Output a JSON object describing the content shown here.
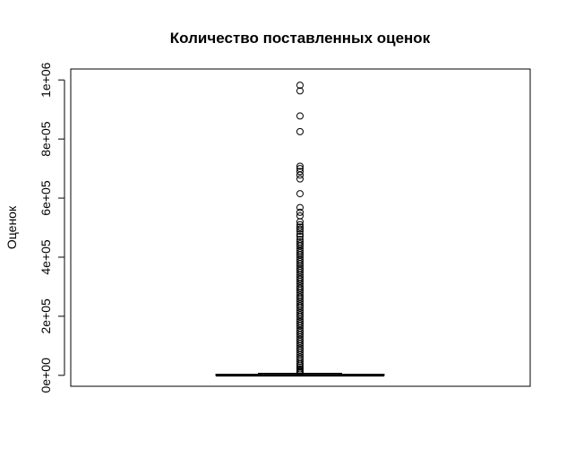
{
  "chart_data": {
    "type": "boxplot",
    "title": "Количество поставленных оценок",
    "xlabel": "",
    "ylabel": "Оценок",
    "ylim": [
      -37000,
      1037000
    ],
    "yticks": [
      0,
      200000,
      400000,
      600000,
      800000,
      1000000
    ],
    "ytick_labels": [
      "0e+00",
      "2e+05",
      "4e+05",
      "6e+05",
      "8e+05",
      "1e+06"
    ],
    "box": {
      "whisker_low": 0,
      "q1": 0,
      "median": 500,
      "q3": 3000,
      "whisker_high": 7000
    },
    "outliers": [
      982000,
      963000,
      878000,
      825000,
      708000,
      700000,
      690000,
      678000,
      665000,
      615000,
      568000,
      552000,
      540000,
      520000,
      510000,
      502000,
      495000,
      488000,
      478000,
      470000,
      460000,
      452000,
      445000,
      438000,
      430000,
      422000,
      415000,
      408000,
      400000,
      392000,
      385000,
      378000,
      370000,
      362000,
      355000,
      348000,
      340000,
      332000,
      325000,
      318000,
      310000,
      302000,
      295000,
      288000,
      280000,
      272000,
      265000,
      258000,
      250000,
      242000,
      235000,
      228000,
      220000,
      212000,
      205000,
      198000,
      190000,
      182000,
      175000,
      168000,
      160000,
      152000,
      145000,
      138000,
      130000,
      122000,
      115000,
      108000,
      100000,
      92000,
      85000,
      78000,
      70000,
      62000,
      55000,
      48000,
      40000,
      34000,
      28000,
      22000,
      17000,
      13000,
      10000,
      8000
    ],
    "grid": false,
    "legend": "none"
  }
}
